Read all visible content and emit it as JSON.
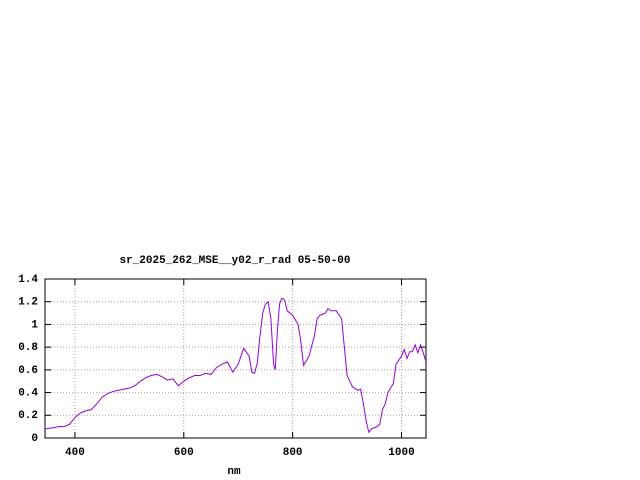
{
  "chart_data": {
    "type": "line",
    "title": "sr_2025_262_MSE__y02_r_rad 05-50-00",
    "x_label": "nm",
    "color": "#9400d3",
    "grid": true,
    "xlim": [
      345,
      1045
    ],
    "ylim": [
      0,
      1.4
    ],
    "xticks": [
      400,
      600,
      800,
      1000
    ],
    "yticks": [
      0,
      0.2,
      0.4,
      0.6,
      0.8,
      1,
      1.2,
      1.4
    ],
    "x": [
      345,
      360,
      370,
      380,
      390,
      400,
      410,
      420,
      430,
      440,
      450,
      460,
      470,
      480,
      490,
      500,
      510,
      520,
      530,
      540,
      550,
      560,
      570,
      580,
      590,
      600,
      610,
      620,
      630,
      640,
      650,
      660,
      670,
      680,
      690,
      700,
      710,
      720,
      725,
      730,
      735,
      740,
      745,
      750,
      755,
      760,
      765,
      768,
      772,
      776,
      780,
      785,
      790,
      800,
      810,
      815,
      820,
      830,
      840,
      845,
      850,
      860,
      865,
      870,
      880,
      890,
      895,
      900,
      905,
      910,
      920,
      925,
      930,
      935,
      940,
      945,
      955,
      960,
      965,
      970,
      975,
      985,
      990,
      1000,
      1005,
      1010,
      1015,
      1020,
      1025,
      1030,
      1035,
      1040,
      1045
    ],
    "values": [
      0.08,
      0.09,
      0.1,
      0.1,
      0.12,
      0.18,
      0.22,
      0.24,
      0.25,
      0.3,
      0.36,
      0.39,
      0.41,
      0.42,
      0.43,
      0.44,
      0.46,
      0.5,
      0.53,
      0.55,
      0.56,
      0.54,
      0.51,
      0.52,
      0.46,
      0.5,
      0.53,
      0.55,
      0.55,
      0.57,
      0.56,
      0.62,
      0.65,
      0.67,
      0.58,
      0.65,
      0.79,
      0.72,
      0.58,
      0.57,
      0.66,
      0.9,
      1.1,
      1.18,
      1.2,
      1.05,
      0.65,
      0.6,
      0.95,
      1.18,
      1.23,
      1.22,
      1.12,
      1.08,
      1.0,
      0.85,
      0.64,
      0.72,
      0.9,
      1.05,
      1.08,
      1.1,
      1.14,
      1.12,
      1.12,
      1.05,
      0.8,
      0.55,
      0.5,
      0.45,
      0.42,
      0.43,
      0.3,
      0.15,
      0.05,
      0.08,
      0.1,
      0.12,
      0.25,
      0.3,
      0.4,
      0.48,
      0.65,
      0.72,
      0.78,
      0.7,
      0.76,
      0.76,
      0.82,
      0.75,
      0.82,
      0.75,
      0.67
    ]
  }
}
